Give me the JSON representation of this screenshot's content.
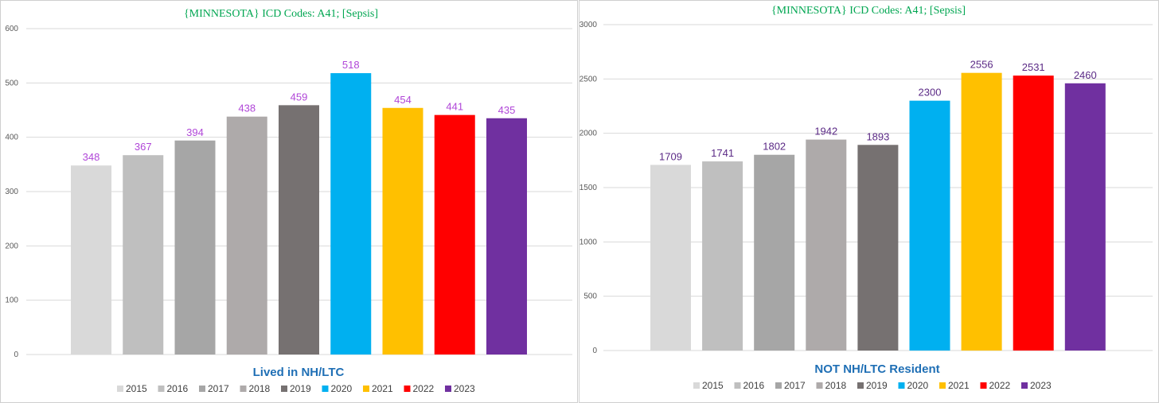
{
  "chart_data": [
    {
      "type": "bar",
      "title": "{MINNESOTA}   ICD Codes: A41;  [Sepsis]",
      "subtitle": "Lived in NH/LTC",
      "categories": [
        "2015",
        "2016",
        "2017",
        "2018",
        "2019",
        "2020",
        "2021",
        "2022",
        "2023"
      ],
      "values": [
        348,
        367,
        394,
        438,
        459,
        518,
        454,
        441,
        435
      ],
      "colors": [
        "#d9d9d9",
        "#bfbfbf",
        "#a6a6a6",
        "#aeaaaa",
        "#767171",
        "#00b0f0",
        "#ffc000",
        "#ff0000",
        "#7030a0"
      ],
      "ylim": [
        0,
        600
      ],
      "yticks": [
        0,
        100,
        200,
        300,
        400,
        500,
        600
      ],
      "label_color": "#b046d8",
      "grid": true,
      "legend": "bottom"
    },
    {
      "type": "bar",
      "title": "{MINNESOTA}   ICD Codes: A41;  [Sepsis]",
      "subtitle": "NOT NH/LTC Resident",
      "categories": [
        "2015",
        "2016",
        "2017",
        "2018",
        "2019",
        "2020",
        "2021",
        "2022",
        "2023"
      ],
      "values": [
        1709,
        1741,
        1802,
        1942,
        1893,
        2300,
        2556,
        2531,
        2460
      ],
      "colors": [
        "#d9d9d9",
        "#bfbfbf",
        "#a6a6a6",
        "#aeaaaa",
        "#767171",
        "#00b0f0",
        "#ffc000",
        "#ff0000",
        "#7030a0"
      ],
      "ylim": [
        0,
        3000
      ],
      "yticks": [
        0,
        500,
        1000,
        1500,
        2000,
        2500,
        3000
      ],
      "label_color": "#5b2a86",
      "grid": true,
      "legend": "bottom"
    }
  ]
}
